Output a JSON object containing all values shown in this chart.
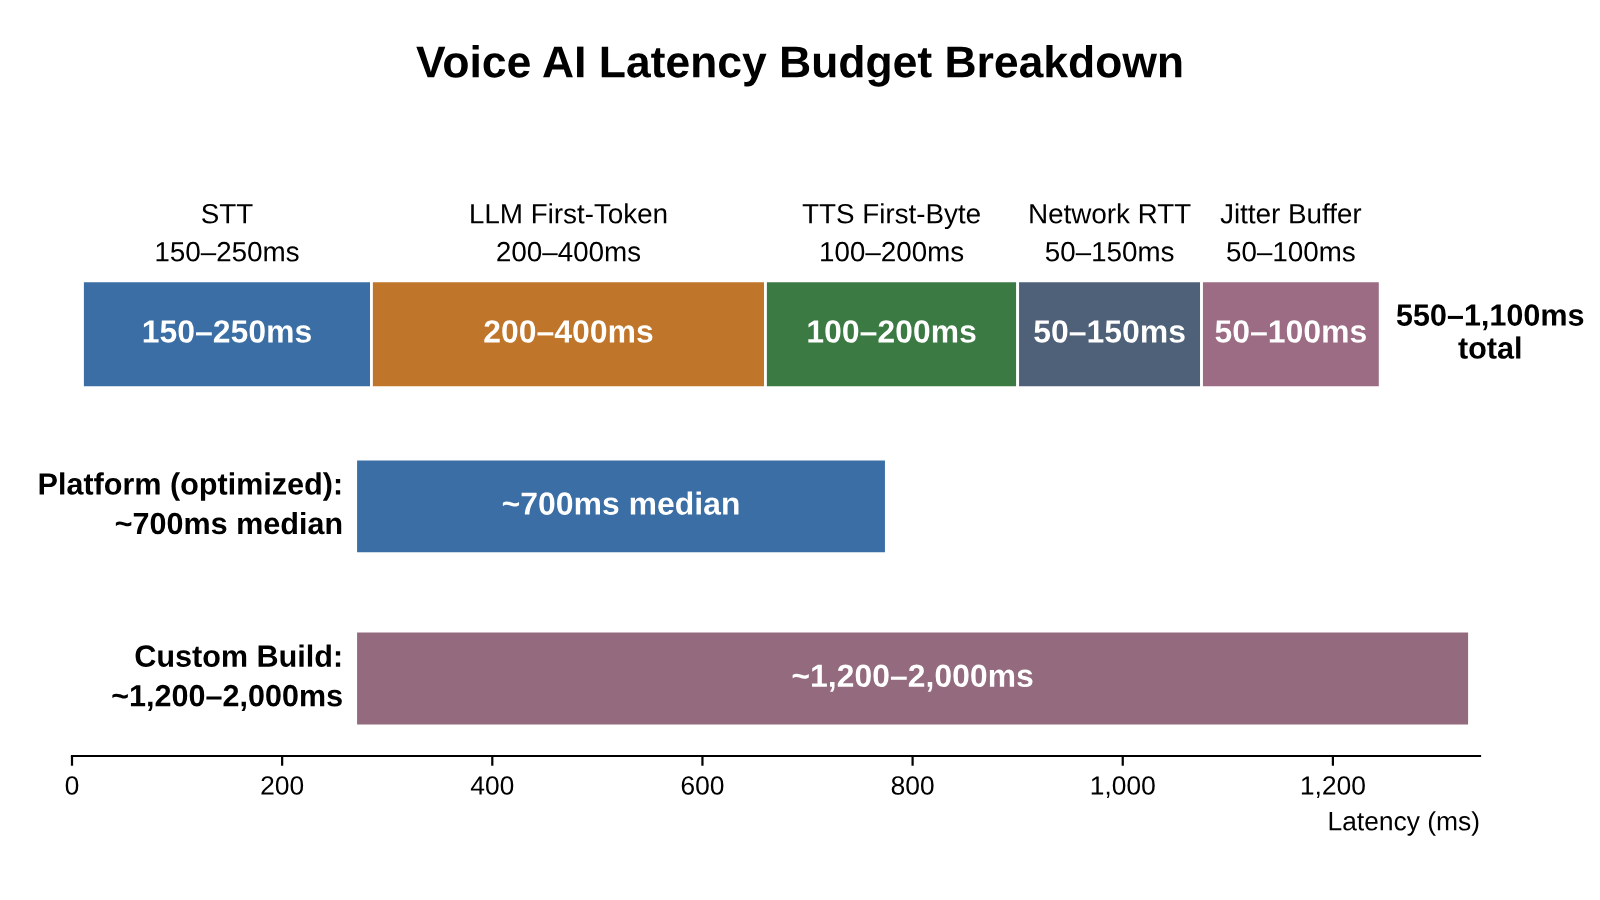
{
  "chart_data": {
    "type": "bar",
    "orientation": "horizontal",
    "title": "Voice AI Latency Budget Breakdown",
    "xlabel": "Latency (ms)",
    "categories": [
      null,
      "Platform (optimized):\n~700ms median",
      "Custom Build:\n~1,200–2,000ms"
    ],
    "series": [
      {
        "name": "STT\n150–250ms",
        "color": "#3a6ea5",
        "base": [
          10,
          null,
          null
        ],
        "values": [
          275,
          null,
          null
        ]
      },
      {
        "name": "LLM First-Token\n200–400ms",
        "color": "#c0762a",
        "base": [
          285,
          null,
          null
        ],
        "values": [
          375,
          null,
          null
        ]
      },
      {
        "name": "TTS First-Byte\n100–200ms",
        "color": "#3c7a44",
        "base": [
          660,
          null,
          null
        ],
        "values": [
          240,
          null,
          null
        ]
      },
      {
        "name": "Network RTT\n50–150ms",
        "color": "#4f6178",
        "base": [
          900,
          null,
          null
        ],
        "values": [
          175,
          null,
          null
        ]
      },
      {
        "name": "Jitter Buffer\n50–100ms",
        "color": "#9c6b84",
        "base": [
          1075,
          null,
          null
        ],
        "values": [
          170,
          null,
          null
        ]
      },
      {
        "color": "#3a6ea5",
        "base": [
          null,
          270,
          null
        ],
        "values": [
          null,
          505,
          null
        ]
      },
      {
        "color": "#946a7e",
        "base": [
          null,
          null,
          270
        ],
        "values": [
          null,
          null,
          1060
        ]
      }
    ],
    "annotations": [
      "150–250ms",
      "200–400ms",
      "100–200ms",
      "50–150ms",
      "50–100ms",
      "~700ms median",
      "~1,200–2,000ms",
      "550–1,100ms\ntotal"
    ],
    "xlim": [
      0,
      1340
    ],
    "xticks": [
      0,
      200,
      400,
      600,
      800,
      {
        "value": 1000,
        "label": "1,000"
      },
      {
        "value": 1200,
        "label": "1,200"
      }
    ],
    "grid": false,
    "legend": false
  }
}
